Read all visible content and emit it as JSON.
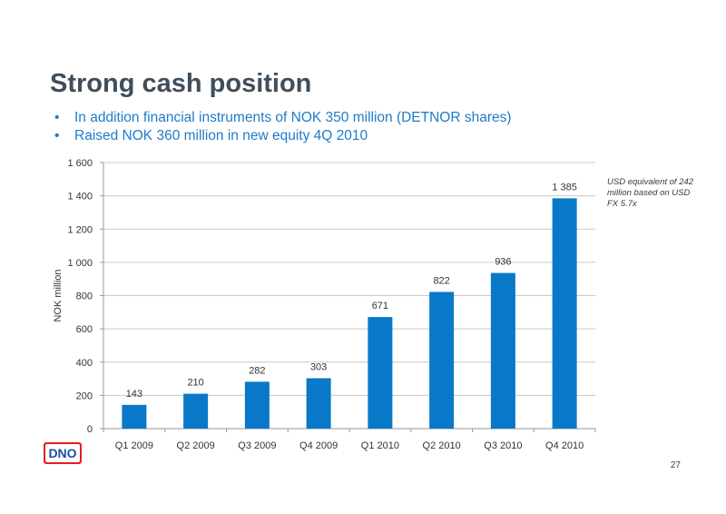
{
  "slide": {
    "title": "Strong cash position",
    "bullets": [
      "In addition financial instruments of NOK 350 million (DETNOR shares)",
      "Raised NOK 360 million in new equity 4Q 2010"
    ],
    "note": "USD equivalent of 242 million based on USD FX 5.7x",
    "logo_text": "DNO",
    "page_number": "27"
  },
  "colors": {
    "bar": "#0a78c8",
    "title": "#404e5b",
    "bullet_text": "#1f7bc8",
    "logo_red": "#e31e24"
  },
  "chart_data": {
    "type": "bar",
    "categories": [
      "Q1 2009",
      "Q2 2009",
      "Q3 2009",
      "Q4 2009",
      "Q1 2010",
      "Q2 2010",
      "Q3 2010",
      "Q4 2010"
    ],
    "values": [
      143,
      210,
      282,
      303,
      671,
      822,
      936,
      1385
    ],
    "value_labels": [
      "143",
      "210",
      "282",
      "303",
      "671",
      "822",
      "936",
      "1 385"
    ],
    "ylabel": "NOK million",
    "ylim": [
      0,
      1600
    ],
    "yticks": [
      0,
      200,
      400,
      600,
      800,
      1000,
      1200,
      1400,
      1600
    ],
    "ytick_labels": [
      "0",
      "200",
      "400",
      "600",
      "800",
      "1 000",
      "1 200",
      "1 400",
      "1 600"
    ],
    "grid": true
  }
}
